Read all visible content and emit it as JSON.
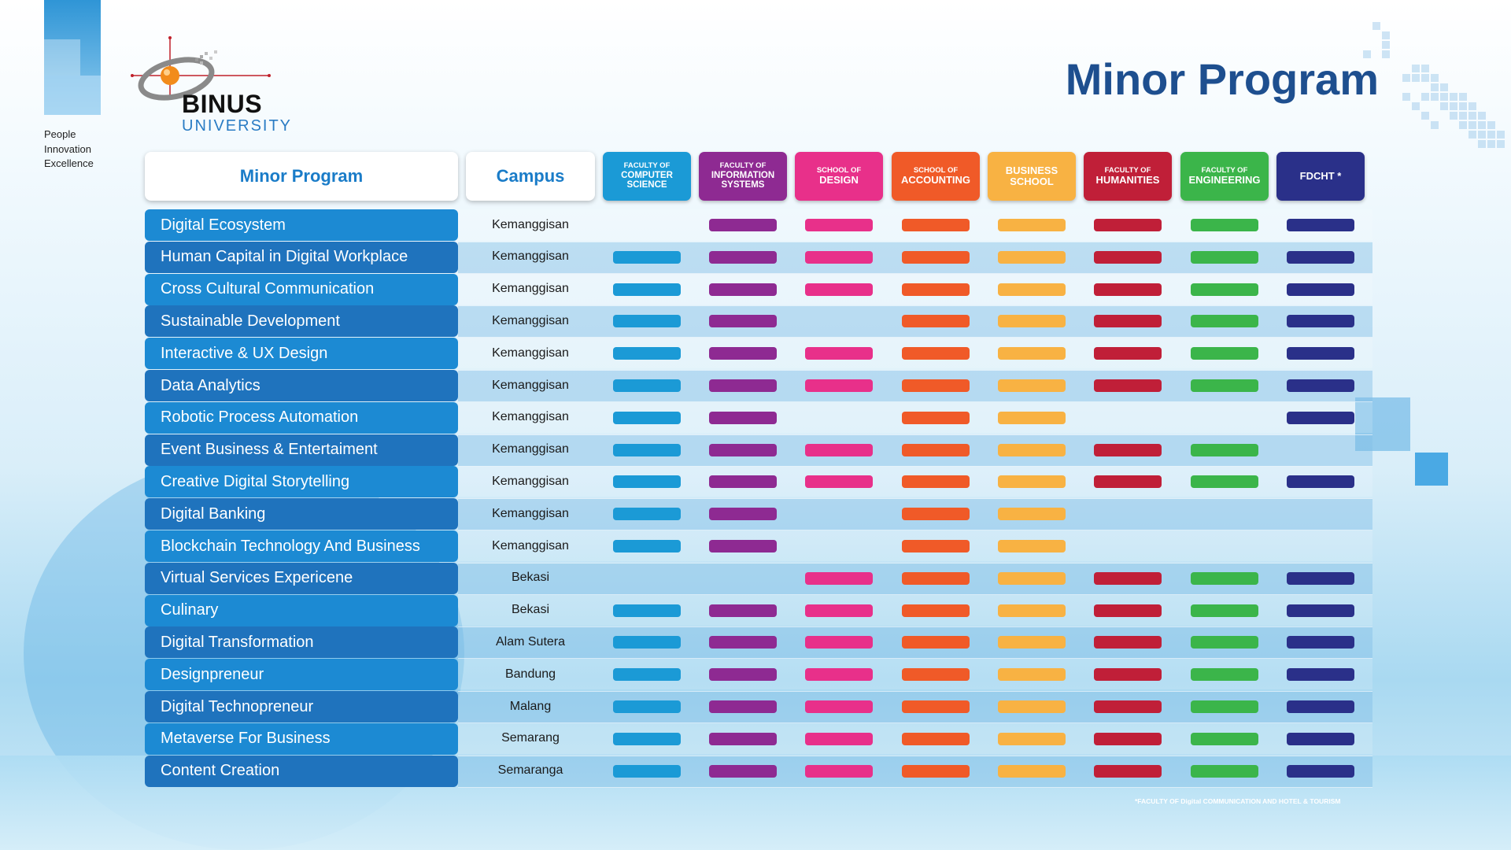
{
  "colors": {
    "cs": "#1b9ad6",
    "is": "#8e2a92",
    "design": "#e8308a",
    "accounting": "#f05a28",
    "business": "#f8b243",
    "humanities": "#c01f38",
    "engineering": "#3bb54a",
    "fdcht": "#2a3089"
  },
  "brand": {
    "logo_name": "BINUS",
    "logo_sub": "UNIVERSITY",
    "tagline": [
      "People",
      "Innovation",
      "Excellence"
    ]
  },
  "title": "Minor Program",
  "headers": {
    "program": "Minor Program",
    "campus": "Campus"
  },
  "faculties": [
    {
      "key": "cs",
      "lines": [
        "FACULTY OF",
        "COMPUTER",
        "SCIENCE"
      ]
    },
    {
      "key": "is",
      "lines": [
        "FACULTY OF",
        "INFORMATION",
        "SYSTEMS"
      ]
    },
    {
      "key": "design",
      "lines": [
        "SCHOOL OF",
        "DESIGN"
      ]
    },
    {
      "key": "accounting",
      "lines": [
        "SCHOOL OF",
        "ACCOUNTING"
      ]
    },
    {
      "key": "business",
      "lines": [
        "BUSINESS",
        "SCHOOL"
      ]
    },
    {
      "key": "humanities",
      "lines": [
        "FACULTY OF",
        "HUMANITIES"
      ]
    },
    {
      "key": "engineering",
      "lines": [
        "FACULTY OF",
        "ENGINEERING"
      ]
    },
    {
      "key": "fdcht",
      "lines": [
        "FDCHT *"
      ]
    }
  ],
  "programs": [
    {
      "name": "Digital Ecosystem",
      "campus": "Kemanggisan",
      "avail": [
        0,
        1,
        1,
        1,
        1,
        1,
        1,
        1
      ]
    },
    {
      "name": "Human Capital in Digital Workplace",
      "campus": "Kemanggisan",
      "avail": [
        1,
        1,
        1,
        1,
        1,
        1,
        1,
        1
      ]
    },
    {
      "name": "Cross Cultural Communication",
      "campus": "Kemanggisan",
      "avail": [
        1,
        1,
        1,
        1,
        1,
        1,
        1,
        1
      ]
    },
    {
      "name": "Sustainable Development",
      "campus": "Kemanggisan",
      "avail": [
        1,
        1,
        0,
        1,
        1,
        1,
        1,
        1
      ]
    },
    {
      "name": "Interactive & UX Design",
      "campus": "Kemanggisan",
      "avail": [
        1,
        1,
        1,
        1,
        1,
        1,
        1,
        1
      ]
    },
    {
      "name": "Data Analytics",
      "campus": "Kemanggisan",
      "avail": [
        1,
        1,
        1,
        1,
        1,
        1,
        1,
        1
      ]
    },
    {
      "name": "Robotic Process Automation",
      "campus": "Kemanggisan",
      "avail": [
        1,
        1,
        0,
        1,
        1,
        0,
        0,
        1
      ]
    },
    {
      "name": "Event Business & Entertaiment",
      "campus": "Kemanggisan",
      "avail": [
        1,
        1,
        1,
        1,
        1,
        1,
        1,
        0
      ]
    },
    {
      "name": "Creative Digital Storytelling",
      "campus": "Kemanggisan",
      "avail": [
        1,
        1,
        1,
        1,
        1,
        1,
        1,
        1
      ]
    },
    {
      "name": "Digital Banking",
      "campus": "Kemanggisan",
      "avail": [
        1,
        1,
        0,
        1,
        1,
        0,
        0,
        0
      ]
    },
    {
      "name": "Blockchain Technology And Business",
      "campus": "Kemanggisan",
      "avail": [
        1,
        1,
        0,
        1,
        1,
        0,
        0,
        0
      ]
    },
    {
      "name": "Virtual Services Expericene",
      "campus": "Bekasi",
      "avail": [
        0,
        0,
        1,
        1,
        1,
        1,
        1,
        1
      ]
    },
    {
      "name": "Culinary",
      "campus": "Bekasi",
      "avail": [
        1,
        1,
        1,
        1,
        1,
        1,
        1,
        1
      ]
    },
    {
      "name": "Digital Transformation",
      "campus": "Alam Sutera",
      "avail": [
        1,
        1,
        1,
        1,
        1,
        1,
        1,
        1
      ]
    },
    {
      "name": "Designpreneur",
      "campus": "Bandung",
      "avail": [
        1,
        1,
        1,
        1,
        1,
        1,
        1,
        1
      ]
    },
    {
      "name": "Digital Technopreneur",
      "campus": "Malang",
      "avail": [
        1,
        1,
        1,
        1,
        1,
        1,
        1,
        1
      ]
    },
    {
      "name": "Metaverse For Business",
      "campus": "Semarang",
      "avail": [
        1,
        1,
        1,
        1,
        1,
        1,
        1,
        1
      ]
    },
    {
      "name": "Content Creation",
      "campus": "Semaranga",
      "avail": [
        1,
        1,
        1,
        1,
        1,
        1,
        1,
        1
      ]
    }
  ],
  "footnote": "*FACULTY OF Digital COMMUNICATION AND HOTEL & TOURISM"
}
